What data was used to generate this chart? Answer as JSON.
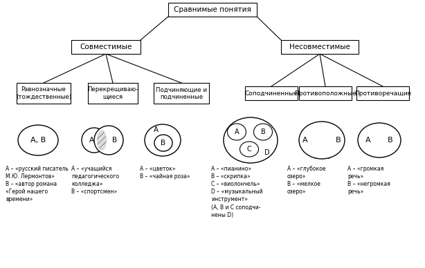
{
  "title": "Сравнимые понятия",
  "left_branch": "Совместимые",
  "right_branch": "Несовместимые",
  "left_leaves": [
    "Равнозначные\n(тождественные)",
    "Перекрещиваю-\nщиеся",
    "Подчиняющие и\nподчиненные"
  ],
  "right_leaves": [
    "Соподчиненные",
    "Противоположные",
    "Противоречащие"
  ],
  "texts": [
    "А – «русский писатель\nМ.Ю. Лермонтов»\nВ – «автор романа\n«Герой нашего\nвремени»",
    "А – «учащийся\nпедагогического\nколледжа»\nВ – «спортсмен»",
    "А – «цветок»\nВ – «чайная роза»",
    "А – «пианино»\nВ – «скрипка»\nС – «виолончель»\nD – «музыкальный\nинструмент»\n(А, В и С соподчи-\nнены D)",
    "А – «глубокое\nозеро»\nВ – «мелкое\nозеро»",
    "А – «громкая\nречь»\nВ – «негромкая\nречь»"
  ],
  "bg_color": "#ffffff",
  "line_color": "#000000",
  "text_color": "#000000"
}
